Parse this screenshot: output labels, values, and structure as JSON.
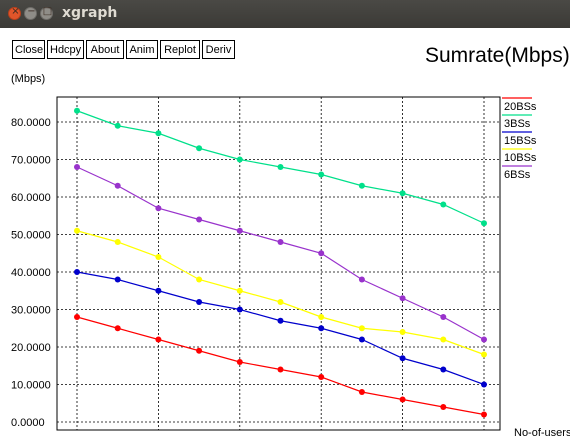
{
  "window": {
    "title": "xgraph",
    "controls": {
      "close": "×",
      "minimize": "−",
      "maximize": "□"
    }
  },
  "toolbar": {
    "buttons": [
      "Close",
      "Hdcpy",
      "About",
      "Anim",
      "Replot",
      "Deriv"
    ]
  },
  "chart_data": {
    "type": "line",
    "title": "Sumrate(Mbps)",
    "ylabel": "(Mbps)",
    "xlabel": "No-of-users",
    "ylim": [
      0,
      85
    ],
    "yticks": [
      0,
      10,
      20,
      30,
      40,
      50,
      60,
      70,
      80
    ],
    "yticklabels": [
      "0.0000",
      "10.0000",
      "20.0000",
      "30.0000",
      "40.0000",
      "50.0000",
      "60.0000",
      "70.0000",
      "80.0000"
    ],
    "x": [
      0,
      1,
      2,
      3,
      4,
      5,
      6,
      7,
      8,
      9,
      10
    ],
    "xlim": [
      0,
      10
    ],
    "grid": true,
    "legend_position": "right",
    "series": [
      {
        "name": "20BSs",
        "color": "#ff0000",
        "values": [
          28,
          25,
          22,
          19,
          16,
          14,
          12,
          8,
          6,
          4,
          2
        ]
      },
      {
        "name": "3BSs",
        "color": "#00e08a",
        "values": [
          83,
          79,
          77,
          73,
          70,
          68,
          66,
          63,
          61,
          58,
          53
        ]
      },
      {
        "name": "15BSs",
        "color": "#0000cc",
        "values": [
          40,
          38,
          35,
          32,
          30,
          27,
          25,
          22,
          17,
          14,
          10
        ]
      },
      {
        "name": "10BSs",
        "color": "#ffff00",
        "values": [
          51,
          48,
          44,
          38,
          35,
          32,
          28,
          25,
          24,
          22,
          18
        ]
      },
      {
        "name": "6BSs",
        "color": "#9933cc",
        "values": [
          68,
          63,
          57,
          54,
          51,
          48,
          45,
          38,
          33,
          28,
          22
        ]
      }
    ]
  }
}
